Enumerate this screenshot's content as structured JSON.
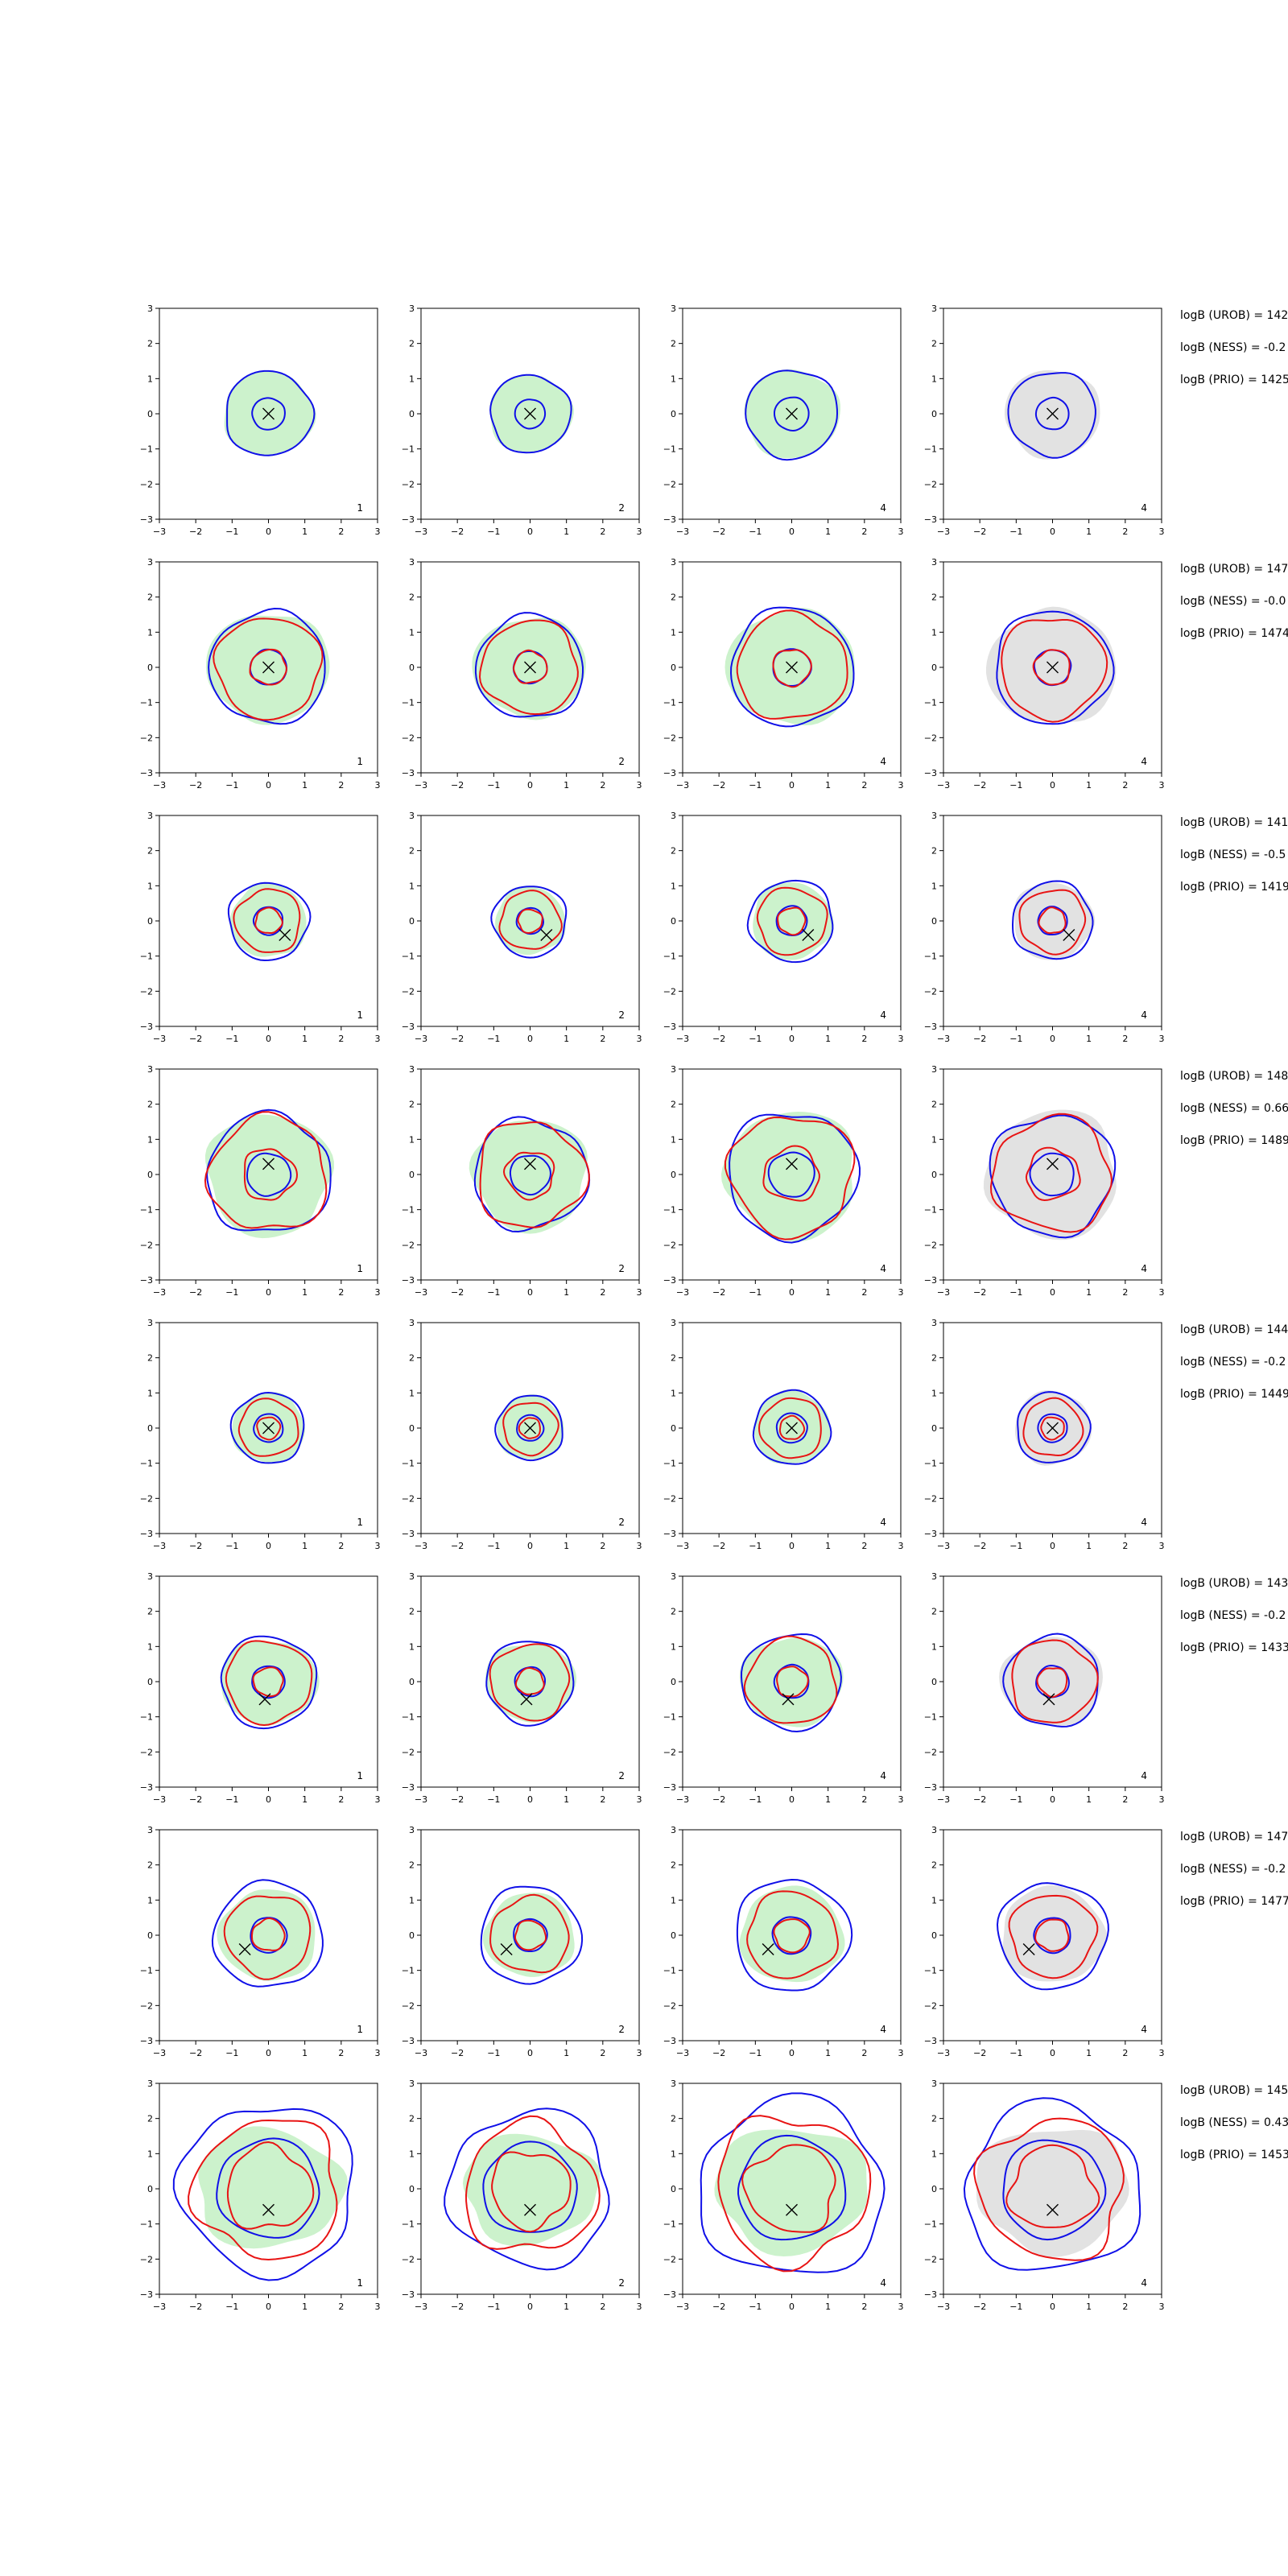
{
  "chart_data": {
    "type": "contour-grid",
    "title": "",
    "xlabel": "",
    "ylabel": "",
    "xlim": [
      -3,
      3
    ],
    "ylim": [
      -3,
      3
    ],
    "xticks": [
      "−3",
      "−2",
      "−1",
      "0",
      "1",
      "2",
      "3"
    ],
    "yticks": [
      "3",
      "2",
      "1",
      "0",
      "−1",
      "−2",
      "−3"
    ],
    "grid": false,
    "colors": {
      "fill": "#ccf2cc",
      "fill_dark": "#a7dca7",
      "gray_fill": "#e2e2e2",
      "blue": "#1010e8",
      "red": "#e81414",
      "marker": "#000000"
    },
    "column_labels": [
      "1",
      "2",
      "4",
      "4"
    ],
    "rows": [
      {
        "marker": [
          0,
          0
        ],
        "blue_levels": [
          1.2,
          0.45
        ],
        "red_levels": [],
        "fill": [
          1.25,
          1.2
        ],
        "gray": false,
        "wobble": 0.06,
        "notes": [
          "logB (UROB) = 142",
          "logB (NESS) = -0.2",
          "logB (PRIO) = 1425"
        ]
      },
      {
        "marker": [
          0,
          0
        ],
        "blue_levels": [
          1.6,
          0.5
        ],
        "red_levels": [
          1.6,
          0.55
        ],
        "fill": [
          1.7,
          1.55
        ],
        "gray": false,
        "wobble": 0.07,
        "notes": [
          "logB (UROB) = 147",
          "logB (NESS) = -0.0",
          "logB (PRIO) = 1474"
        ]
      },
      {
        "marker": [
          0.45,
          -0.4
        ],
        "blue_levels": [
          1.1,
          0.4
        ],
        "red_levels": [
          1.0,
          0.4
        ],
        "fill": [
          1.05,
          1.05
        ],
        "gray": false,
        "wobble": 0.07,
        "notes": [
          "logB (UROB) = 141",
          "logB (NESS) = -0.5",
          "logB (PRIO) = 1419"
        ]
      },
      {
        "marker": [
          0,
          0.3
        ],
        "blue_levels": [
          1.7,
          0.6
        ],
        "red_levels": [
          1.8,
          0.8
        ],
        "fill": [
          1.7,
          1.75
        ],
        "gray": false,
        "wobble": 0.1,
        "notes": [
          "logB (UROB) = 148",
          "logB (NESS) = 0.66",
          "logB (PRIO) = 1489"
        ]
      },
      {
        "marker": [
          0,
          0
        ],
        "blue_levels": [
          1.0,
          0.4
        ],
        "red_levels": [
          0.9,
          0.35
        ],
        "fill": [
          1.0,
          1.0
        ],
        "gray": false,
        "wobble": 0.06,
        "notes": [
          "logB (UROB) = 144",
          "logB (NESS) = -0.2",
          "logB (PRIO) = 1449"
        ]
      },
      {
        "marker": [
          -0.1,
          -0.5
        ],
        "blue_levels": [
          1.3,
          0.45
        ],
        "red_levels": [
          1.3,
          0.45
        ],
        "fill": [
          1.35,
          1.2
        ],
        "gray": false,
        "wobble": 0.07,
        "notes": [
          "logB (UROB) = 143",
          "logB (NESS) = -0.2",
          "logB (PRIO) = 1433"
        ]
      },
      {
        "marker": [
          -0.65,
          -0.4
        ],
        "blue_levels": [
          1.5,
          0.5
        ],
        "red_levels": [
          1.3,
          0.5
        ],
        "fill": [
          1.35,
          1.3
        ],
        "gray": false,
        "wobble": 0.07,
        "notes": [
          "logB (UROB) = 147",
          "logB (NESS) = -0.2",
          "logB (PRIO) = 1477"
        ]
      },
      {
        "marker": [
          0,
          -0.6
        ],
        "blue_levels": [
          2.4,
          1.4
        ],
        "red_levels": [
          2.2,
          1.3
        ],
        "fill": [
          2.0,
          1.7
        ],
        "gray": false,
        "wobble": 0.12,
        "notes": [
          "logB (UROB) = 145",
          "logB (NESS) = 0.43",
          "logB (PRIO) = 1453"
        ]
      }
    ]
  }
}
